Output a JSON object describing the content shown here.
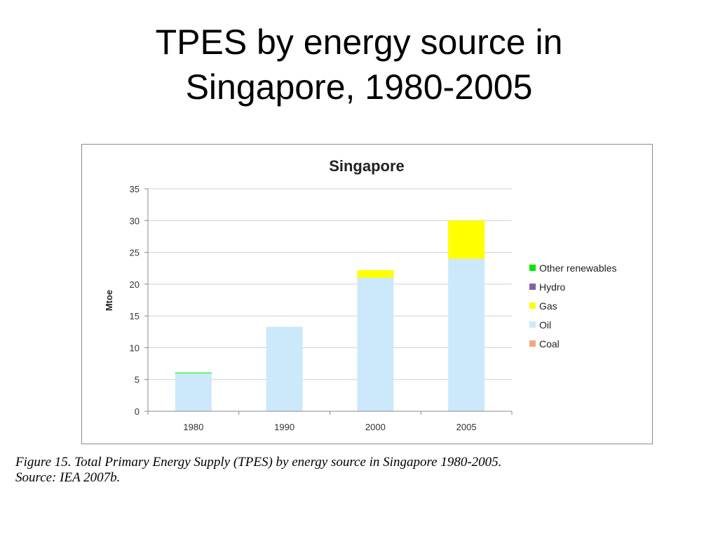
{
  "slide": {
    "title_lines": [
      "TPES by energy source in",
      "Singapore, 1980-2005"
    ]
  },
  "caption": {
    "lines": [
      "Figure 15. Total Primary Energy Supply (TPES) by energy source in Singapore 1980-2005.",
      "Source: IEA 2007b."
    ]
  },
  "chart_data": {
    "type": "bar",
    "stacked": true,
    "title": "Singapore",
    "xlabel": "",
    "ylabel": "Mtoe",
    "categories": [
      "1980",
      "1990",
      "2000",
      "2005"
    ],
    "ylim": [
      0,
      35
    ],
    "yticks": [
      0,
      5,
      10,
      15,
      20,
      25,
      30,
      35
    ],
    "grid": true,
    "legend_position": "right",
    "series": [
      {
        "name": "Coal",
        "color": "#f4a582",
        "values": [
          0,
          0,
          0,
          0
        ]
      },
      {
        "name": "Oil",
        "color": "#cce9fb",
        "values": [
          6,
          13.3,
          21,
          24
        ]
      },
      {
        "name": "Gas",
        "color": "#ffff00",
        "values": [
          0,
          0,
          1.2,
          6
        ]
      },
      {
        "name": "Hydro",
        "color": "#8064a2",
        "values": [
          0,
          0,
          0,
          0
        ]
      },
      {
        "name": "Other renewables",
        "color": "#00e600",
        "values": [
          0.1,
          0,
          0,
          0
        ]
      }
    ],
    "legend_order": [
      "Other renewables",
      "Hydro",
      "Gas",
      "Oil",
      "Coal"
    ]
  }
}
